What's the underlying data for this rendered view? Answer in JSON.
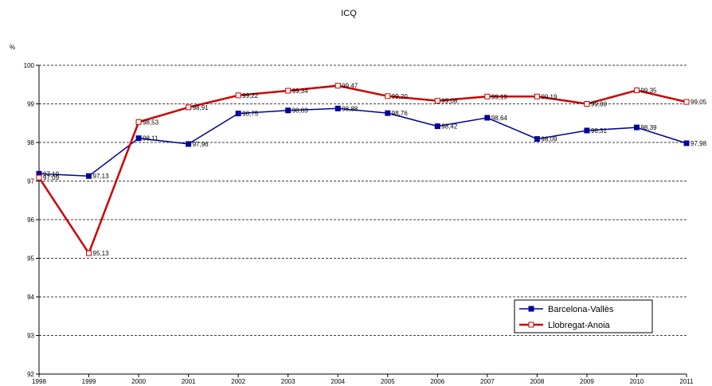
{
  "chart_data": {
    "type": "line",
    "title": "ICQ",
    "ylabel": "%",
    "xlabel": "",
    "ylim": [
      92,
      100
    ],
    "yticks": [
      92,
      93,
      94,
      95,
      96,
      97,
      98,
      99,
      100
    ],
    "grid": true,
    "legend_position": "bottom-right",
    "categories": [
      "1998",
      "1999",
      "2000",
      "2001",
      "2002",
      "2003",
      "2004",
      "2005",
      "2006",
      "2007",
      "2008",
      "2009",
      "2010",
      "2011"
    ],
    "series": [
      {
        "name": "Barcelona-Vallès",
        "color": "#000099",
        "marker": "filled-square",
        "values": [
          97.19,
          97.13,
          98.11,
          97.96,
          98.75,
          98.83,
          98.88,
          98.76,
          98.42,
          98.64,
          98.09,
          98.31,
          98.39,
          97.98
        ],
        "labels": [
          "97,19",
          "97,13",
          "98,11",
          "97,96",
          "98,75",
          "98,83",
          "98,88",
          "98,76",
          "98,42",
          "98,64",
          "98,09",
          "98,31",
          "98,39",
          "97,98"
        ]
      },
      {
        "name": "Llobregat-Anoia",
        "color": "#cc0000",
        "marker": "open-square",
        "values": [
          97.09,
          95.13,
          98.53,
          98.91,
          99.22,
          99.34,
          99.47,
          99.2,
          99.08,
          99.19,
          99.19,
          99.0,
          99.35,
          99.05
        ],
        "labels": [
          "97,09",
          "95,13",
          "98,53",
          "98,91",
          "99,22",
          "99,34",
          "99,47",
          "99,20",
          "99,08",
          "99,19",
          "99,19",
          "99,00",
          "99,35",
          "99,05"
        ]
      }
    ]
  }
}
